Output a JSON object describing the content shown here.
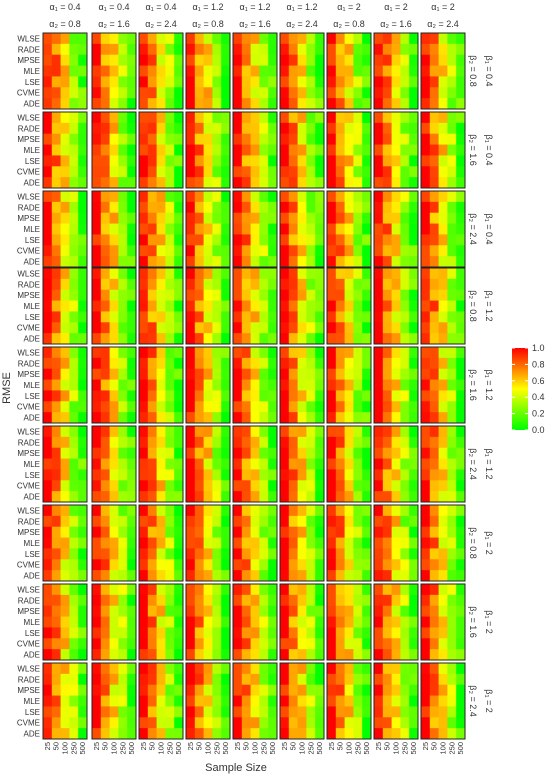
{
  "chart_data": {
    "type": "heatmap",
    "ylabel": "RMSE",
    "xlabel": "Sample Size",
    "estimators": [
      "WLSE",
      "RADE",
      "MPSE",
      "MLE",
      "LSE",
      "CVME",
      "ADE"
    ],
    "sample_sizes": [
      "25",
      "50",
      "100",
      "250",
      "500"
    ],
    "column_headers": [
      {
        "alpha1": "α₁ = 0.4",
        "alpha2": "α₂ = 0.8"
      },
      {
        "alpha1": "α₁ = 0.4",
        "alpha2": "α₂ = 1.6"
      },
      {
        "alpha1": "α₁ = 0.4",
        "alpha2": "α₂ = 2.4"
      },
      {
        "alpha1": "α₁ = 1.2",
        "alpha2": "α₂ = 0.8"
      },
      {
        "alpha1": "α₁ = 1.2",
        "alpha2": "α₂ = 1.6"
      },
      {
        "alpha1": "α₁ = 1.2",
        "alpha2": "α₂ = 2.4"
      },
      {
        "alpha1": "α₁ = 2",
        "alpha2": "α₂ = 0.8"
      },
      {
        "alpha1": "α₁ = 2",
        "alpha2": "α₂ = 1.6"
      },
      {
        "alpha1": "α₁ = 2",
        "alpha2": "α₂ = 2.4"
      }
    ],
    "row_headers": [
      {
        "beta2": "β₂ = 0.8",
        "beta1": "β₁ = 0.4"
      },
      {
        "beta2": "β₂ = 1.6",
        "beta1": "β₁ = 0.4"
      },
      {
        "beta2": "β₂ = 2.4",
        "beta1": "β₁ = 0.4"
      },
      {
        "beta2": "β₂ = 0.8",
        "beta1": "β₁ = 1.2"
      },
      {
        "beta2": "β₂ = 1.6",
        "beta1": "β₁ = 1.2"
      },
      {
        "beta2": "β₂ = 2.4",
        "beta1": "β₁ = 1.2"
      },
      {
        "beta2": "β₂ = 0.8",
        "beta1": "β₁ = 2"
      },
      {
        "beta2": "β₂ = 1.6",
        "beta1": "β₁ = 2"
      },
      {
        "beta2": "β₂ = 2.4",
        "beta1": "β₁ = 2"
      }
    ],
    "colorbar": {
      "ticks": [
        "1.0",
        "0.8",
        "0.6",
        "0.4",
        "0.2",
        "0.0"
      ],
      "range": [
        0,
        1
      ],
      "low_color": "#00ff00",
      "mid_color": "#ffff00",
      "high_color": "#ff0000"
    },
    "value_profile": {
      "note_scale": "normalized RMSE per panel, 0-1",
      "by_sample_size": [
        0.97,
        0.75,
        0.55,
        0.32,
        0.12
      ]
    }
  }
}
